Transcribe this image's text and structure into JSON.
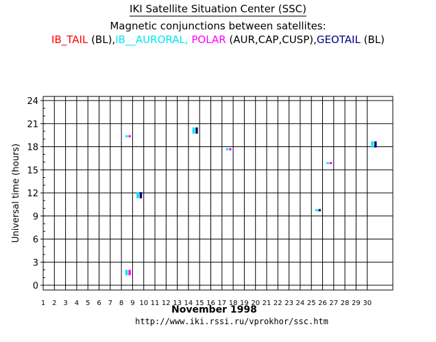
{
  "header": {
    "title": "IKI Satellite Situation Center (SSC)",
    "subtitle": "Magnetic conjunctions between satellites:",
    "legend_line": [
      {
        "text": "IB_TAIL",
        "color": "#ff0000"
      },
      {
        "text": " (BL),",
        "color": "#000000"
      },
      {
        "text": "IB__AURORAL,",
        "color": "#00e5ee"
      },
      {
        "text": " ",
        "color": "#000000"
      },
      {
        "text": "POLAR",
        "color": "#ff00ff"
      },
      {
        "text": " (AUR,CAP,CUSP),",
        "color": "#000000"
      },
      {
        "text": "GEOTAIL",
        "color": "#000080"
      },
      {
        "text": " (BL)",
        "color": "#000000"
      }
    ]
  },
  "footer": {
    "month_label": "November   1998",
    "url": "http://www.iki.rssi.ru/vprokhor/ssc.htm"
  },
  "chart_data": {
    "type": "scatter",
    "xlabel": "",
    "ylabel": "Universal time  (hours)",
    "xlim": [
      1,
      31
    ],
    "ylim": [
      0,
      24
    ],
    "x_ticks": [
      "1",
      "2",
      "3",
      "4",
      "5",
      "6",
      "7",
      "8",
      "9",
      "10",
      "11",
      "12",
      "13",
      "14",
      "15",
      "16",
      "17",
      "18",
      "19",
      "20",
      "21",
      "22",
      "23",
      "24",
      "25",
      "26",
      "27",
      "28",
      "29",
      "30"
    ],
    "y_ticks": [
      0,
      3,
      6,
      9,
      12,
      15,
      18,
      21,
      24
    ],
    "grid": true,
    "colors": {
      "IB_TAIL": "#ff0000",
      "IB__AURORAL": "#00e5ee",
      "POLAR": "#ff00ff",
      "GEOTAIL": "#000080"
    },
    "marks": [
      {
        "day": 8.6,
        "utc_start": 19.3,
        "utc_end": 19.5,
        "satellites": [
          "IB__AURORAL",
          "POLAR"
        ]
      },
      {
        "day": 8.6,
        "utc_start": 1.3,
        "utc_end": 2.0,
        "satellites": [
          "IB__AURORAL",
          "POLAR"
        ]
      },
      {
        "day": 9.6,
        "utc_start": 11.3,
        "utc_end": 12.1,
        "satellites": [
          "IB__AURORAL",
          "GEOTAIL"
        ]
      },
      {
        "day": 14.6,
        "utc_start": 19.7,
        "utc_end": 20.5,
        "satellites": [
          "IB__AURORAL",
          "GEOTAIL"
        ]
      },
      {
        "day": 17.6,
        "utc_start": 17.6,
        "utc_end": 17.8,
        "satellites": [
          "IB__AURORAL",
          "POLAR"
        ]
      },
      {
        "day": 25.6,
        "utc_start": 9.6,
        "utc_end": 9.9,
        "satellites": [
          "IB__AURORAL",
          "GEOTAIL"
        ]
      },
      {
        "day": 26.6,
        "utc_start": 15.8,
        "utc_end": 16.0,
        "satellites": [
          "IB__AURORAL",
          "POLAR"
        ]
      },
      {
        "day": 30.6,
        "utc_start": 17.9,
        "utc_end": 18.7,
        "satellites": [
          "IB__AURORAL",
          "GEOTAIL"
        ]
      }
    ]
  }
}
